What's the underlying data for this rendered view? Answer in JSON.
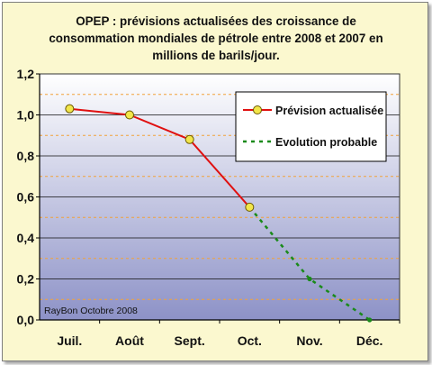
{
  "chart_data": {
    "type": "line",
    "title_lines": [
      "OPEP : prévisions actualisées des croissance de",
      "consommation mondiales de pétrole entre 2008 et 2007 en",
      "millions de barils/jour."
    ],
    "categories": [
      "Juil.",
      "Août",
      "Sept.",
      "Oct.",
      "Nov.",
      "Déc."
    ],
    "y_ticks": [
      "0,0",
      "0,2",
      "0,4",
      "0,6",
      "0,8",
      "1,0",
      "1,2"
    ],
    "ylim": [
      0,
      1.2
    ],
    "series": [
      {
        "name": "Prévision actualisée",
        "values": [
          1.03,
          1.0,
          0.88,
          0.55,
          null,
          null
        ],
        "color": "#e01010",
        "marker": "#f2e64a"
      },
      {
        "name": "Evolution probable",
        "values": [
          null,
          null,
          null,
          0.55,
          0.2,
          0.0
        ],
        "color": "#1a8a1a"
      }
    ],
    "legend_position": "top-right",
    "credit": "RayBon Octobre 2008",
    "plot_gradient": [
      "#ffffff",
      "#8d92c7"
    ],
    "grid_colors": {
      "major": "#111111",
      "minor": "#f2a23a"
    }
  }
}
